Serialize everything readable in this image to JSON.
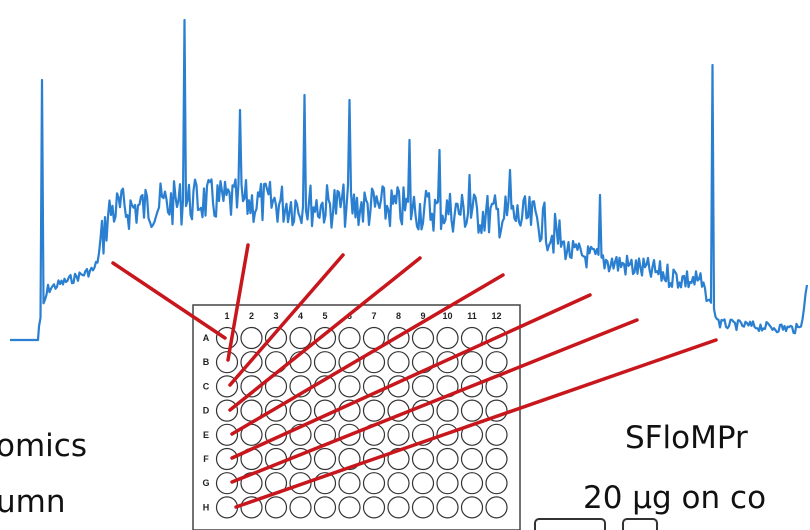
{
  "texts": {
    "left_line1": "omics",
    "left_line2": "umn",
    "right_line1": "SFloMPr",
    "right_line2": "20 µg on co"
  },
  "plate": {
    "columns": [
      "1",
      "2",
      "3",
      "4",
      "5",
      "6",
      "7",
      "8",
      "9",
      "10",
      "11",
      "12"
    ],
    "rows": [
      "A",
      "B",
      "C",
      "D",
      "E",
      "F",
      "G",
      "H"
    ]
  }
}
